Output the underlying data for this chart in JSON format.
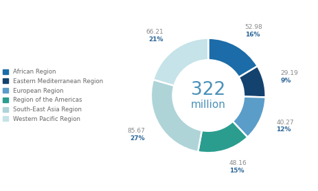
{
  "regions": [
    "African Region",
    "Eastern Mediterranean Region",
    "European Region",
    "Region of the Americas",
    "South-East Asia Region",
    "Western Pacific Region"
  ],
  "values": [
    52.98,
    29.19,
    40.27,
    48.16,
    85.67,
    66.21
  ],
  "percentages": [
    "16%",
    "9%",
    "12%",
    "15%",
    "27%",
    "21%"
  ],
  "labels_values": [
    "52.98",
    "29.19",
    "40.27",
    "48.16",
    "85.67",
    "66.21"
  ],
  "colors": [
    "#1b6ca8",
    "#14426e",
    "#5b9dc9",
    "#2a9d8f",
    "#aed4d8",
    "#c5e3e8"
  ],
  "center_text_main": "322",
  "center_text_sub": "million",
  "center_color": "#4a90b8",
  "background_color": "#ffffff",
  "total": 322,
  "label_value_color": "#888888",
  "label_pct_color": "#2a6496",
  "legend_text_color": "#666666"
}
